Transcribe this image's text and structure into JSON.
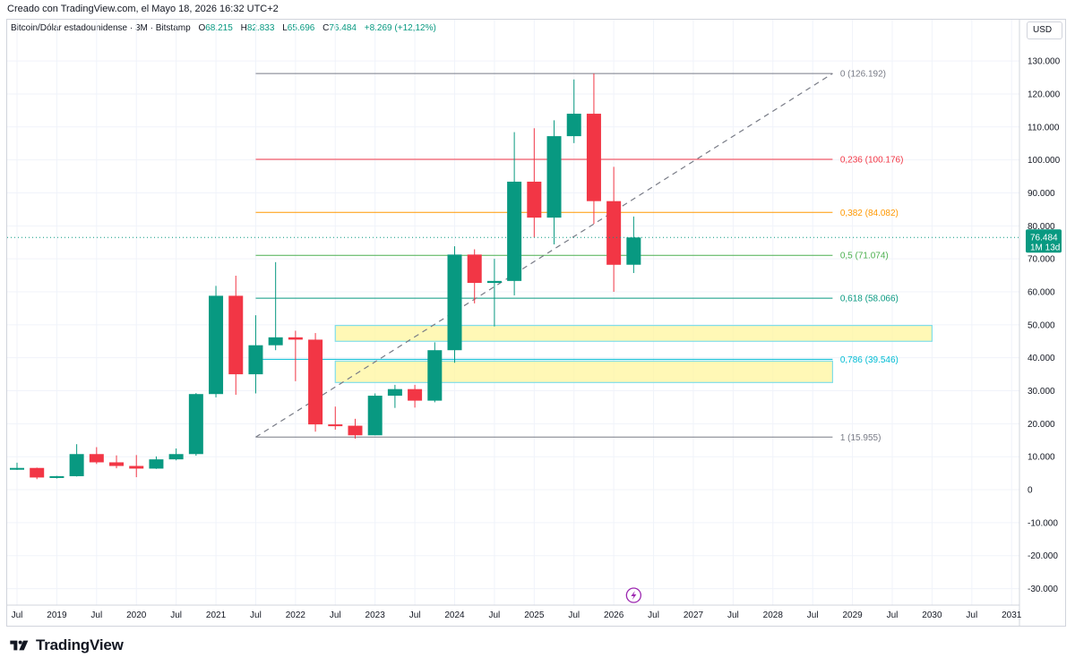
{
  "caption": "Creado con TradingView.com, el Mayo 18, 2026 16:32 UTC+2",
  "legend": {
    "symbol": "Bitcoin/Dólar estadounidense · 3M · Bitstamp",
    "o_label": "O",
    "o": "68.215",
    "h_label": "H",
    "h": "82.833",
    "l_label": "L",
    "l": "65.696",
    "c_label": "C",
    "c": "76.484",
    "change": "+8.269 (+12,12%)"
  },
  "currency_button": "USD",
  "brand": "TradingView",
  "colors": {
    "up": "#089981",
    "down": "#f23645",
    "grid": "#f0f3fa",
    "axis_text": "#131722",
    "fib_0": "#787b86",
    "fib_0236": "#f23645",
    "fib_0382": "#ff9800",
    "fib_05": "#4caf50",
    "fib_0618": "#089981",
    "fib_0786": "#00bcd4",
    "fib_1": "#787b86",
    "zone_fill": "#fff59d",
    "zone_border": "#80deea",
    "price_label": "#089981"
  },
  "chart_data": {
    "type": "candlestick",
    "timeframe": "3M",
    "yticks": [
      "130.000",
      "120.000",
      "110.000",
      "100.000",
      "90.000",
      "80.000",
      "70.000",
      "60.000",
      "50.000",
      "40.000",
      "30.000",
      "20.000",
      "10.000",
      "0",
      "-10.000",
      "-20.000",
      "-30.000"
    ],
    "ytick_values": [
      130000,
      120000,
      110000,
      100000,
      90000,
      80000,
      70000,
      60000,
      50000,
      40000,
      30000,
      20000,
      10000,
      0,
      -10000,
      -20000,
      -30000
    ],
    "ylim": [
      -35000,
      136000
    ],
    "xlim": [
      2018.5,
      2031.2
    ],
    "xticks": [
      {
        "t": 2018.5,
        "label": "Jul"
      },
      {
        "t": 2019.0,
        "label": "2019"
      },
      {
        "t": 2019.5,
        "label": "Jul"
      },
      {
        "t": 2020.0,
        "label": "2020"
      },
      {
        "t": 2020.5,
        "label": "Jul"
      },
      {
        "t": 2021.0,
        "label": "2021"
      },
      {
        "t": 2021.5,
        "label": "Jul"
      },
      {
        "t": 2022.0,
        "label": "2022"
      },
      {
        "t": 2022.5,
        "label": "Jul"
      },
      {
        "t": 2023.0,
        "label": "2023"
      },
      {
        "t": 2023.5,
        "label": "Jul"
      },
      {
        "t": 2024.0,
        "label": "2024"
      },
      {
        "t": 2024.5,
        "label": "Jul"
      },
      {
        "t": 2025.0,
        "label": "2025"
      },
      {
        "t": 2025.5,
        "label": "Jul"
      },
      {
        "t": 2026.0,
        "label": "2026"
      },
      {
        "t": 2026.5,
        "label": "Jul"
      },
      {
        "t": 2027.0,
        "label": "2027"
      },
      {
        "t": 2027.5,
        "label": "Jul"
      },
      {
        "t": 2028.0,
        "label": "2028"
      },
      {
        "t": 2028.5,
        "label": "Jul"
      },
      {
        "t": 2029.0,
        "label": "2029"
      },
      {
        "t": 2029.5,
        "label": "Jul"
      },
      {
        "t": 2030.0,
        "label": "2030"
      },
      {
        "t": 2030.5,
        "label": "Jul"
      },
      {
        "t": 2031.0,
        "label": "2031"
      }
    ],
    "candles": [
      {
        "t": 2018.5,
        "o": 6400,
        "h": 8200,
        "l": 6000,
        "c": 6600
      },
      {
        "t": 2018.75,
        "o": 6600,
        "h": 6700,
        "l": 3200,
        "c": 3700
      },
      {
        "t": 2019.0,
        "o": 3700,
        "h": 4200,
        "l": 3400,
        "c": 4100
      },
      {
        "t": 2019.25,
        "o": 4100,
        "h": 13800,
        "l": 4000,
        "c": 10800
      },
      {
        "t": 2019.5,
        "o": 10800,
        "h": 12900,
        "l": 7800,
        "c": 8300
      },
      {
        "t": 2019.75,
        "o": 8300,
        "h": 10400,
        "l": 6500,
        "c": 7200
      },
      {
        "t": 2020.0,
        "o": 7200,
        "h": 10500,
        "l": 3800,
        "c": 6400
      },
      {
        "t": 2020.25,
        "o": 6400,
        "h": 10100,
        "l": 6300,
        "c": 9200
      },
      {
        "t": 2020.5,
        "o": 9200,
        "h": 12500,
        "l": 8900,
        "c": 10800
      },
      {
        "t": 2020.75,
        "o": 10800,
        "h": 29300,
        "l": 10300,
        "c": 29000
      },
      {
        "t": 2021.0,
        "o": 29000,
        "h": 61800,
        "l": 28000,
        "c": 58800
      },
      {
        "t": 2021.25,
        "o": 58800,
        "h": 64900,
        "l": 28800,
        "c": 35000
      },
      {
        "t": 2021.5,
        "o": 35000,
        "h": 52900,
        "l": 29200,
        "c": 43800
      },
      {
        "t": 2021.75,
        "o": 43800,
        "h": 69000,
        "l": 42300,
        "c": 46200
      },
      {
        "t": 2022.0,
        "o": 46200,
        "h": 48200,
        "l": 32900,
        "c": 45500
      },
      {
        "t": 2022.25,
        "o": 45500,
        "h": 47500,
        "l": 17600,
        "c": 19800
      },
      {
        "t": 2022.5,
        "o": 19800,
        "h": 25200,
        "l": 18200,
        "c": 19400
      },
      {
        "t": 2022.75,
        "o": 19400,
        "h": 21500,
        "l": 15500,
        "c": 16500
      },
      {
        "t": 2023.0,
        "o": 16500,
        "h": 29200,
        "l": 16500,
        "c": 28500
      },
      {
        "t": 2023.25,
        "o": 28500,
        "h": 31800,
        "l": 24800,
        "c": 30500
      },
      {
        "t": 2023.5,
        "o": 30500,
        "h": 31800,
        "l": 24900,
        "c": 27000
      },
      {
        "t": 2023.75,
        "o": 27000,
        "h": 44700,
        "l": 26500,
        "c": 42300
      },
      {
        "t": 2024.0,
        "o": 42300,
        "h": 73800,
        "l": 38500,
        "c": 71300
      },
      {
        "t": 2024.25,
        "o": 71300,
        "h": 72900,
        "l": 56500,
        "c": 62700
      },
      {
        "t": 2024.5,
        "o": 62700,
        "h": 70000,
        "l": 49500,
        "c": 63300
      },
      {
        "t": 2024.75,
        "o": 63300,
        "h": 108400,
        "l": 58900,
        "c": 93400
      },
      {
        "t": 2025.0,
        "o": 93400,
        "h": 109600,
        "l": 76500,
        "c": 82500
      },
      {
        "t": 2025.25,
        "o": 82500,
        "h": 112000,
        "l": 74400,
        "c": 107200
      },
      {
        "t": 2025.5,
        "o": 107200,
        "h": 124400,
        "l": 105100,
        "c": 114000
      },
      {
        "t": 2025.75,
        "o": 114000,
        "h": 126200,
        "l": 80600,
        "c": 87500
      },
      {
        "t": 2026.0,
        "o": 87500,
        "h": 97900,
        "l": 60000,
        "c": 68200
      },
      {
        "t": 2026.25,
        "o": 68215,
        "h": 82833,
        "l": 65696,
        "c": 76484
      }
    ],
    "fibonacci": {
      "start": {
        "t": 2021.5,
        "price": 15955
      },
      "end": {
        "t": 2028.75,
        "price": 126192
      },
      "label_t": 2028.8,
      "levels": [
        {
          "ratio": "0",
          "price": 126192,
          "label": "0 (126.192)"
        },
        {
          "ratio": "0.236",
          "price": 100176,
          "label": "0,236 (100.176)"
        },
        {
          "ratio": "0.382",
          "price": 84082,
          "label": "0,382 (84.082)"
        },
        {
          "ratio": "0.5",
          "price": 71074,
          "label": "0,5 (71.074)"
        },
        {
          "ratio": "0.618",
          "price": 58066,
          "label": "0,618 (58.066)"
        },
        {
          "ratio": "0.786",
          "price": 39546,
          "label": "0,786 (39.546)"
        },
        {
          "ratio": "1",
          "price": 15955,
          "label": "1 (15.955)"
        }
      ]
    },
    "zones": [
      {
        "t1": 2022.5,
        "t2": 2030.0,
        "p1": 45000,
        "p2": 49800
      },
      {
        "t1": 2022.5,
        "t2": 2028.75,
        "p1": 32500,
        "p2": 39000
      }
    ],
    "current_price": {
      "price": 76484,
      "label": "76.484",
      "countdown": "1M 13d"
    }
  }
}
